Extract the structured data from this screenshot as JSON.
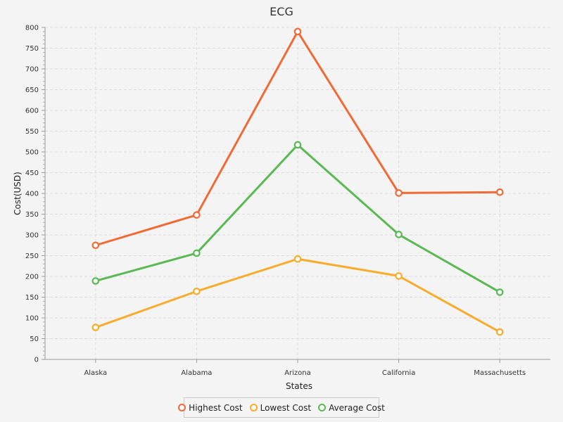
{
  "chart_data": {
    "type": "line",
    "title": "ECG",
    "xlabel": "States",
    "ylabel": "Cost(USD)",
    "ylim": [
      0,
      800
    ],
    "y_major_step": 50,
    "y_minor_step": 10,
    "grid": true,
    "legend_position": "bottom-center",
    "categories": [
      "Alaska",
      "Alabama",
      "Arizona",
      "California",
      "Massachusetts"
    ],
    "series": [
      {
        "name": "Highest Cost",
        "color": "#f06a35",
        "values": [
          275,
          348,
          790,
          401,
          403
        ]
      },
      {
        "name": "Lowest Cost",
        "color": "#f8ac2b",
        "values": [
          77,
          164,
          242,
          201,
          66
        ]
      },
      {
        "name": "Average Cost",
        "color": "#5ab952",
        "values": [
          189,
          256,
          517,
          301,
          162
        ]
      }
    ]
  }
}
